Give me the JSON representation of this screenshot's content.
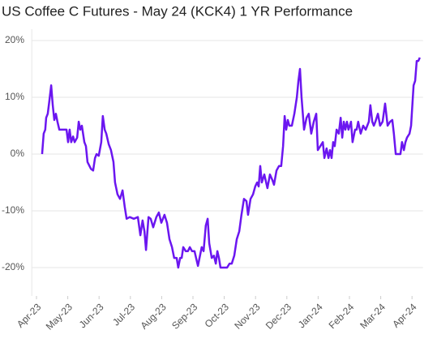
{
  "chart_data": {
    "type": "line",
    "title": "US Coffee C Futures - May 24 (KCK4) 1 YR Performance",
    "color": "#6b16f0",
    "grid": true,
    "x": [
      0.18,
      0.23,
      0.28,
      0.31,
      0.36,
      0.41,
      0.47,
      0.52,
      0.57,
      0.62,
      0.67,
      0.73,
      0.85,
      0.96,
      1.01,
      1.06,
      1.11,
      1.17,
      1.22,
      1.3,
      1.35,
      1.4,
      1.45,
      1.53,
      1.58,
      1.63,
      1.74,
      1.81,
      1.87,
      1.92,
      1.99,
      2.07,
      2.12,
      2.18,
      2.23,
      2.31,
      2.38,
      2.46,
      2.51,
      2.59,
      2.67,
      2.75,
      2.82,
      2.88,
      2.98,
      3.11,
      3.24,
      3.32,
      3.39,
      3.45,
      3.5,
      3.58,
      3.65,
      3.73,
      3.83,
      3.91,
      3.99,
      4.09,
      4.17,
      4.25,
      4.33,
      4.4,
      4.48,
      4.53,
      4.59,
      4.64,
      4.69,
      4.77,
      4.84,
      4.9,
      4.97,
      5.05,
      5.1,
      5.16,
      5.21,
      5.28,
      5.34,
      5.41,
      5.47,
      5.52,
      5.6,
      5.67,
      5.73,
      5.78,
      5.83,
      5.88,
      5.96,
      6.04,
      6.09,
      6.17,
      6.24,
      6.32,
      6.4,
      6.48,
      6.55,
      6.63,
      6.71,
      6.76,
      6.84,
      6.92,
      6.99,
      7.05,
      7.1,
      7.15,
      7.2,
      7.28,
      7.38,
      7.46,
      7.54,
      7.59,
      7.67,
      7.75,
      7.82,
      7.88,
      7.93,
      7.98,
      8.03,
      8.08,
      8.16,
      8.24,
      8.32,
      8.37,
      8.42,
      8.47,
      8.55,
      8.63,
      8.7,
      8.78,
      8.86,
      8.94,
      8.99,
      9.07,
      9.15,
      9.2,
      9.27,
      9.33,
      9.38,
      9.43,
      9.48,
      9.53,
      9.59,
      9.66,
      9.72,
      9.77,
      9.82,
      9.87,
      9.92,
      9.97,
      10.05,
      10.1,
      10.18,
      10.23,
      10.28,
      10.36,
      10.44,
      10.52,
      10.57,
      10.62,
      10.67,
      10.73,
      10.78,
      10.83,
      10.91,
      10.98,
      11.06,
      11.14,
      11.22,
      11.3,
      11.37,
      11.42,
      11.48,
      11.55,
      11.63,
      11.68,
      11.74,
      11.79,
      11.84,
      11.92,
      11.97,
      12.05,
      12.1,
      12.15,
      12.2,
      12.25
    ],
    "values": [
      0,
      3.6,
      4.3,
      6.4,
      7.1,
      9.3,
      12.1,
      8.6,
      6.0,
      7.1,
      5.7,
      4.3,
      4.3,
      4.3,
      2.1,
      4.3,
      2.1,
      3.1,
      2.1,
      2.9,
      5.7,
      4.3,
      5.0,
      2.1,
      1.4,
      -1.4,
      -2.6,
      -2.9,
      -0.7,
      0,
      -0.3,
      2.1,
      6.7,
      4.3,
      3.6,
      1.7,
      0.7,
      -1.4,
      -5.0,
      -7.1,
      -7.9,
      -6.4,
      -9.3,
      -11.4,
      -11.1,
      -11.4,
      -11.1,
      -14.3,
      -11.7,
      -13.6,
      -16.9,
      -11.1,
      -11.4,
      -12.9,
      -11.1,
      -10.3,
      -12.1,
      -10.7,
      -12.1,
      -15.0,
      -16.4,
      -18.3,
      -18.3,
      -20.0,
      -18.3,
      -18.3,
      -16.4,
      -17.1,
      -17.1,
      -16.4,
      -17.1,
      -17.1,
      -18.3,
      -19.7,
      -18.3,
      -16.4,
      -17.1,
      -12.6,
      -11.4,
      -15.7,
      -18.3,
      -17.9,
      -19.3,
      -17.1,
      -18.3,
      -20.0,
      -20.0,
      -20.0,
      -20.0,
      -19.3,
      -19.3,
      -17.9,
      -15.0,
      -13.6,
      -10.7,
      -7.9,
      -8.3,
      -10.7,
      -7.9,
      -7.1,
      -5.7,
      -5.0,
      -5.7,
      -2.1,
      -5.0,
      -3.6,
      -6.0,
      -3.6,
      -4.6,
      -5.4,
      -2.9,
      -2.1,
      -2.1,
      1.4,
      6.7,
      4.3,
      6.0,
      5.0,
      5.0,
      7.1,
      10.0,
      12.9,
      15.0,
      10.0,
      4.3,
      6.4,
      7.1,
      3.6,
      5.7,
      7.1,
      0.7,
      1.4,
      2.1,
      -0.7,
      1.0,
      -0.7,
      0.7,
      -0.7,
      2.1,
      1.4,
      4.3,
      3.6,
      6.4,
      2.9,
      5.7,
      4.3,
      5.7,
      4.3,
      5.7,
      2.1,
      4.3,
      4.3,
      5.7,
      3.6,
      5.0,
      4.3,
      5.0,
      5.7,
      8.6,
      5.7,
      5.0,
      5.7,
      7.1,
      5.0,
      5.7,
      8.9,
      5.0,
      5.7,
      6.0,
      3.6,
      0,
      0,
      0,
      2.1,
      0.7,
      2.1,
      2.9,
      3.6,
      5.0,
      12.1,
      12.9,
      16.4,
      16.4,
      17.0
    ],
    "xlim": [
      -0.15,
      12.35
    ],
    "ylim": [
      -25,
      22
    ],
    "xticks": [
      {
        "value": 0,
        "label": "Apr-23"
      },
      {
        "value": 1,
        "label": "May-23"
      },
      {
        "value": 2,
        "label": "Jun-23"
      },
      {
        "value": 3,
        "label": "Jul-23"
      },
      {
        "value": 4,
        "label": "Aug-23"
      },
      {
        "value": 5,
        "label": "Sep-23"
      },
      {
        "value": 6,
        "label": "Oct-23"
      },
      {
        "value": 7,
        "label": "Nov-23"
      },
      {
        "value": 8,
        "label": "Dec-23"
      },
      {
        "value": 9,
        "label": "Jan-24"
      },
      {
        "value": 10,
        "label": "Feb-24"
      },
      {
        "value": 11,
        "label": "Mar-24"
      },
      {
        "value": 12,
        "label": "Apr-24"
      }
    ],
    "yticks": [
      {
        "value": 20,
        "label": "20%"
      },
      {
        "value": 10,
        "label": "10%"
      },
      {
        "value": 0,
        "label": "0%"
      },
      {
        "value": -10,
        "label": "-10%"
      },
      {
        "value": -20,
        "label": "-20%"
      }
    ]
  }
}
